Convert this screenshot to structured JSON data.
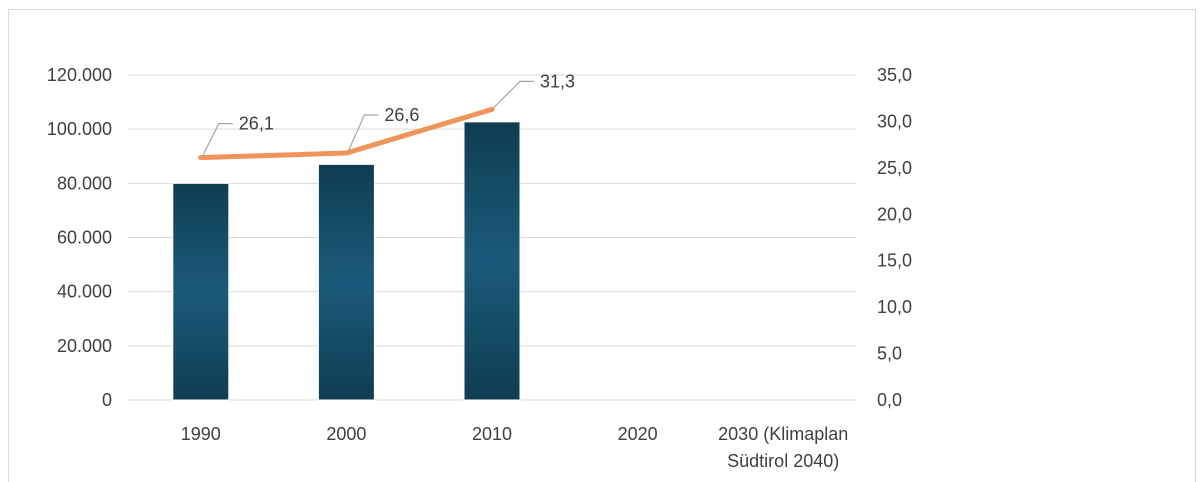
{
  "chart_data": {
    "type": "bar",
    "categories": [
      "1990",
      "2000",
      "2010",
      "2020",
      "2030 (Klimaplan Südtirol 2040)"
    ],
    "category_label_lines": [
      [
        "1990"
      ],
      [
        "2000"
      ],
      [
        "2010"
      ],
      [
        "2020"
      ],
      [
        "2030 (Klimaplan",
        "Südtirol 2040)"
      ]
    ],
    "series": [
      {
        "type": "bar",
        "axis": "left",
        "values": [
          80000,
          87000,
          102700,
          null,
          null
        ],
        "color": "#164e6a"
      },
      {
        "type": "line",
        "axis": "right",
        "values": [
          26.1,
          26.6,
          31.3,
          null,
          null
        ],
        "data_labels": [
          "26,1",
          "26,6",
          "31,3",
          "",
          ""
        ],
        "color": "#f0955a"
      }
    ],
    "y_left": {
      "ylim": [
        0,
        120000
      ],
      "ticks": [
        0,
        20000,
        40000,
        60000,
        80000,
        100000,
        120000
      ],
      "tick_labels": [
        "0",
        "20.000",
        "40.000",
        "60.000",
        "80.000",
        "100.000",
        "120.000"
      ]
    },
    "y_right": {
      "ylim": [
        0,
        35
      ],
      "ticks": [
        0,
        5,
        10,
        15,
        20,
        25,
        30,
        35
      ],
      "tick_labels": [
        "0,0",
        "5,0",
        "10,0",
        "15,0",
        "20,0",
        "25,0",
        "30,0",
        "35,0"
      ]
    },
    "grid": true,
    "legend": "none",
    "colors": {
      "bar_dark": "#0f3d52",
      "bar_mid": "#1a5b7a",
      "line": "#f0955a",
      "grid": "#d9d9d9",
      "leader": "#a6a6a6",
      "text": "#404040"
    }
  }
}
